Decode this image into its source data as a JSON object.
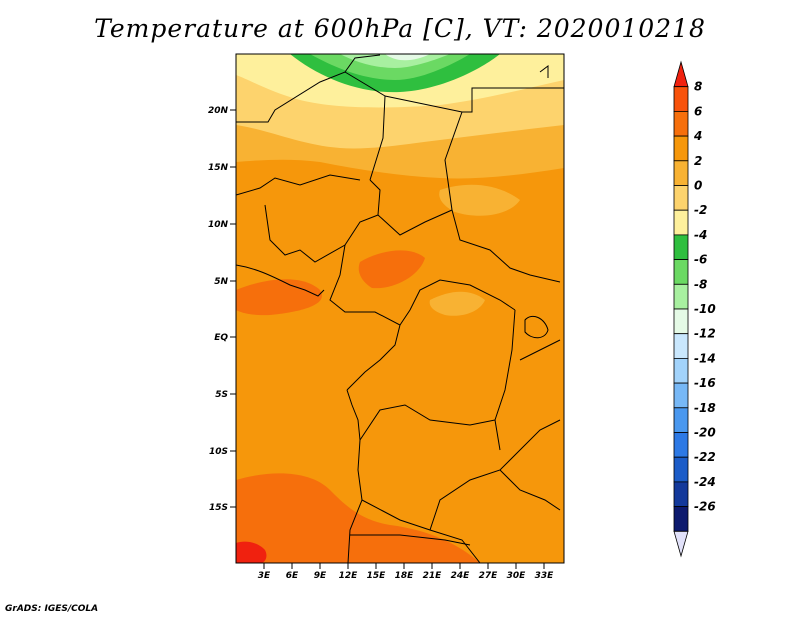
{
  "title": "Temperature at 600hPa [C], VT: 2020010218",
  "credit": "GrADS: IGES/COLA",
  "map": {
    "lat_labels": [
      "20N",
      "15N",
      "10N",
      "5N",
      "EQ",
      "5S",
      "10S",
      "15S"
    ],
    "lon_labels": [
      "3E",
      "6E",
      "9E",
      "12E",
      "15E",
      "18E",
      "21E",
      "24E",
      "27E",
      "30E",
      "33E"
    ]
  },
  "colorbar": {
    "labels": [
      "8",
      "6",
      "4",
      "2",
      "0",
      "-2",
      "-4",
      "-6",
      "-8",
      "-10",
      "-12",
      "-14",
      "-16",
      "-18",
      "-20",
      "-22",
      "-24",
      "-26"
    ],
    "colors": [
      "#f0210f",
      "#f8520b",
      "#f66f0c",
      "#f6970b",
      "#f8b233",
      "#fdd36d",
      "#fef09c",
      "#2fbf3f",
      "#6bd963",
      "#a8f0a0",
      "#e5fae6",
      "#c9e7fd",
      "#a2d3fb",
      "#77b8f6",
      "#4a98ef",
      "#2d79e5",
      "#1b5cc8",
      "#13399b",
      "#0d1a6e",
      "#e1e1f9"
    ]
  }
}
